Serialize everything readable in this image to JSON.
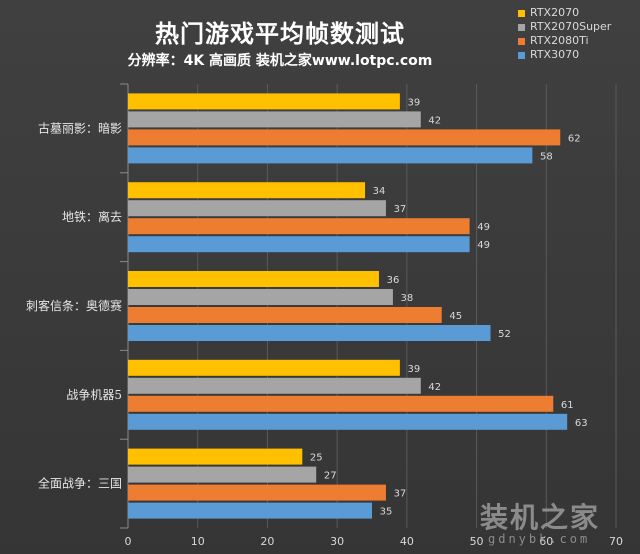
{
  "chart_data": {
    "type": "bar",
    "orientation": "horizontal",
    "title": "热门游戏平均帧数测试",
    "subtitle": "分辨率：4K 高画质 装机之家www.lotpc.com",
    "categories": [
      "古墓丽影：暗影",
      "地铁：离去",
      "刺客信条：奥德赛",
      "战争机器5",
      "全面战争：三国"
    ],
    "series": [
      {
        "name": "RTX2070",
        "color": "#FFC000",
        "values": [
          39,
          34,
          36,
          39,
          25
        ]
      },
      {
        "name": "RTX2070Super",
        "color": "#A5A5A5",
        "values": [
          42,
          37,
          38,
          42,
          27
        ]
      },
      {
        "name": "RTX2080Ti",
        "color": "#ED7D31",
        "values": [
          62,
          49,
          45,
          61,
          37
        ]
      },
      {
        "name": "RTX3070",
        "color": "#5B9BD5",
        "values": [
          58,
          49,
          52,
          63,
          35
        ]
      }
    ],
    "xlim": [
      0,
      70
    ],
    "xticks": [
      0,
      10,
      20,
      30,
      40,
      50,
      60,
      70
    ],
    "grid": true,
    "legend_position": "top-right",
    "data_labels": true
  },
  "watermark": {
    "logo_text": "装机之家",
    "url_text": "gdnybk.com"
  }
}
